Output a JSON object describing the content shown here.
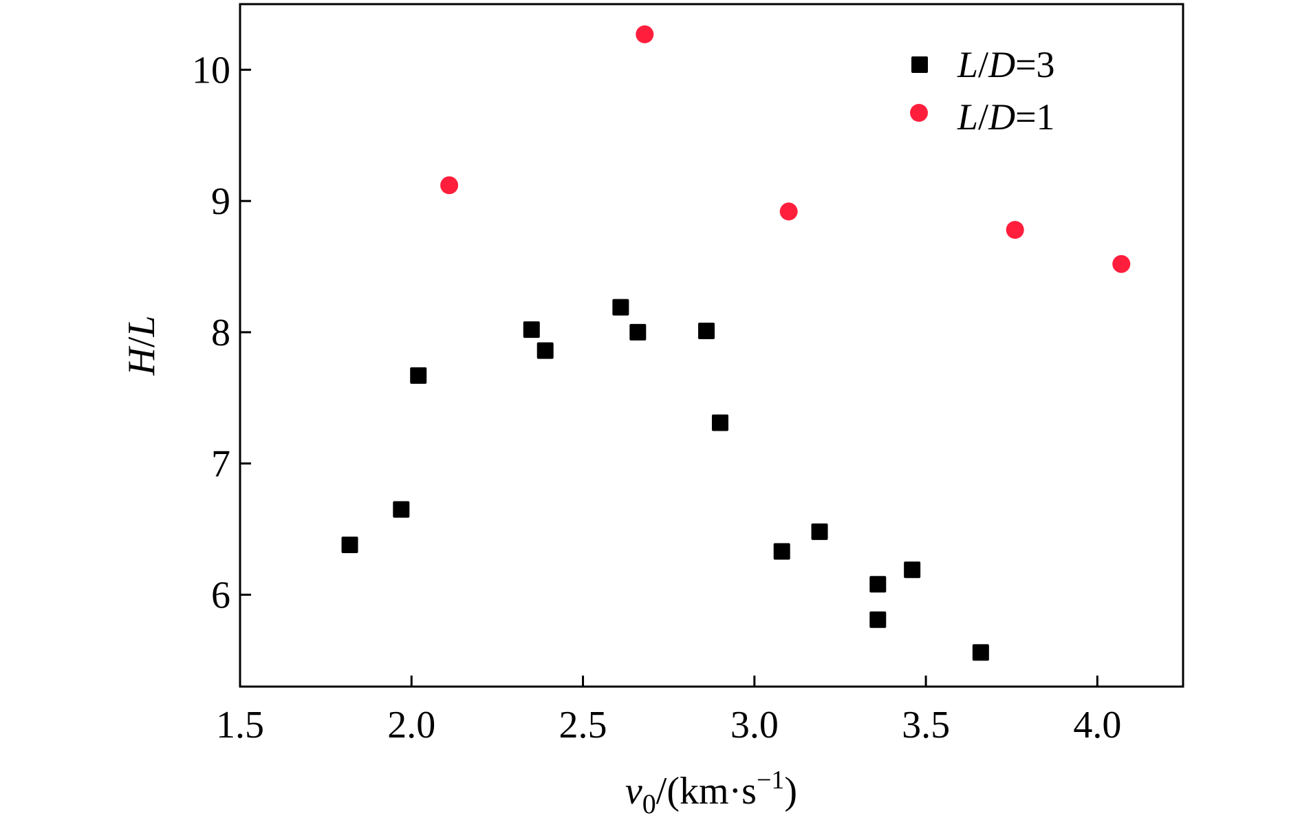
{
  "chart_data": {
    "type": "scatter",
    "title": "",
    "xlabel": {
      "var": "v",
      "sub": "0",
      "unit": "/(km·s",
      "exp": "−1",
      "close": ")"
    },
    "ylabel": {
      "a": "H",
      "slash": "/",
      "b": "L"
    },
    "xlim": [
      1.5,
      4.25
    ],
    "ylim": [
      5.3,
      10.5
    ],
    "xticks": [
      1.5,
      2.0,
      2.5,
      3.0,
      3.5,
      4.0
    ],
    "xtick_labels": [
      "1.5",
      "2.0",
      "2.5",
      "3.0",
      "3.5",
      "4.0"
    ],
    "yticks": [
      6,
      7,
      8,
      9,
      10
    ],
    "ytick_labels": [
      "6",
      "7",
      "8",
      "9",
      "10"
    ],
    "grid": false,
    "legend_position": "top-right",
    "series": [
      {
        "name": "L/D=3",
        "legend": {
          "l": "L",
          "slash": "/",
          "d": "D",
          "rest": "=3"
        },
        "marker": "square",
        "color": "#000000",
        "points": [
          {
            "x": 1.82,
            "y": 6.38
          },
          {
            "x": 1.97,
            "y": 6.65
          },
          {
            "x": 2.02,
            "y": 7.67
          },
          {
            "x": 2.35,
            "y": 8.02
          },
          {
            "x": 2.39,
            "y": 7.86
          },
          {
            "x": 2.61,
            "y": 8.19
          },
          {
            "x": 2.66,
            "y": 8.0
          },
          {
            "x": 2.86,
            "y": 8.01
          },
          {
            "x": 2.9,
            "y": 7.31
          },
          {
            "x": 3.08,
            "y": 6.33
          },
          {
            "x": 3.19,
            "y": 6.48
          },
          {
            "x": 3.36,
            "y": 6.08
          },
          {
            "x": 3.36,
            "y": 5.81
          },
          {
            "x": 3.46,
            "y": 6.19
          },
          {
            "x": 3.66,
            "y": 5.56
          }
        ]
      },
      {
        "name": "L/D=1",
        "legend": {
          "l": "L",
          "slash": "/",
          "d": "D",
          "rest": "=1"
        },
        "marker": "circle",
        "color": "#ff1f3d",
        "points": [
          {
            "x": 2.11,
            "y": 9.12
          },
          {
            "x": 2.68,
            "y": 10.27
          },
          {
            "x": 3.1,
            "y": 8.92
          },
          {
            "x": 3.76,
            "y": 8.78
          },
          {
            "x": 4.07,
            "y": 8.52
          }
        ]
      }
    ]
  }
}
